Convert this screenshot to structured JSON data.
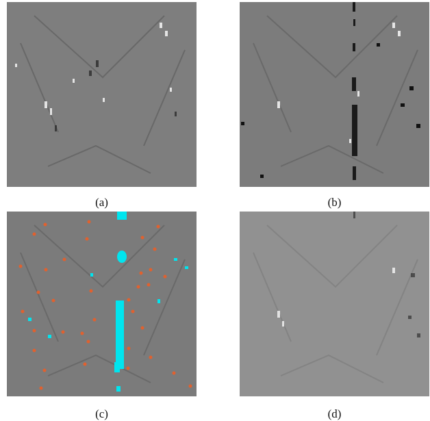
{
  "figure": {
    "panels": [
      {
        "id": "a",
        "caption": "(a)",
        "background": "#7e7e7e",
        "overlay": "none"
      },
      {
        "id": "b",
        "caption": "(b)",
        "background": "#7c7c7c",
        "overlay": "dark-vertical-streak"
      },
      {
        "id": "c",
        "caption": "(c)",
        "background": "#7b7b7b",
        "overlay": "cyan-and-orange-markers"
      },
      {
        "id": "d",
        "caption": "(d)",
        "background": "#919191",
        "overlay": "light-smoothed"
      }
    ],
    "colors": {
      "marker_orange": "#e0612f",
      "marker_cyan": "#00e5ef",
      "streak_dark": "#1a1a1a",
      "caption_text": "#111111"
    }
  }
}
